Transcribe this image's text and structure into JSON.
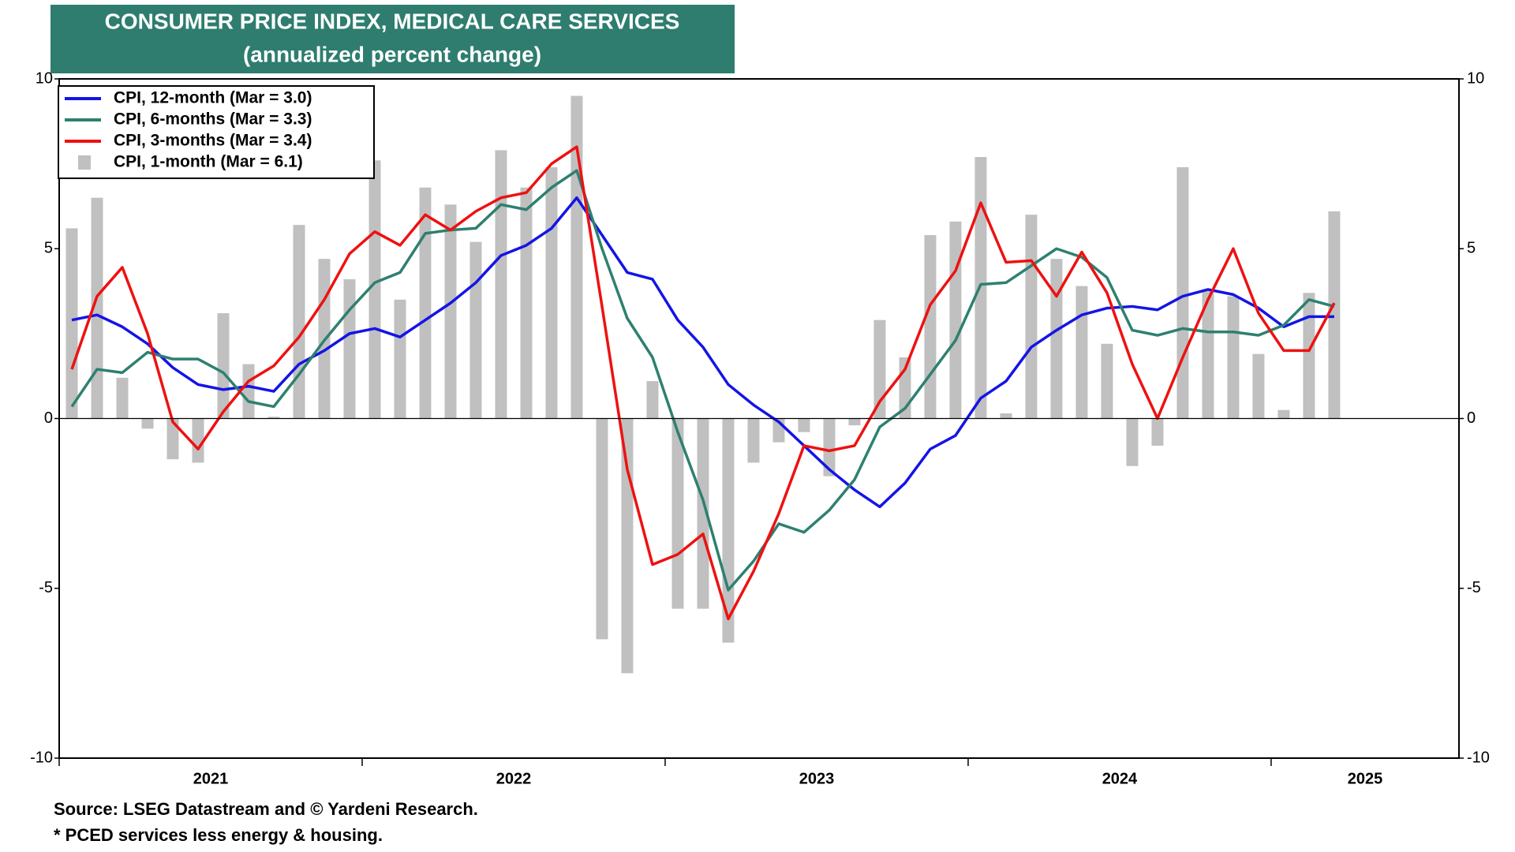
{
  "chart_data": {
    "type": "combo",
    "title": "CONSUMER PRICE INDEX, MEDICAL CARE SERVICES",
    "subtitle": "(annualized percent change)",
    "notes": [
      "Source: LSEG Datastream and © Yardeni Research.",
      "* PCED services less energy & housing."
    ],
    "x": [
      2021.0417,
      2021.125,
      2021.2083,
      2021.2917,
      2021.375,
      2021.4583,
      2021.5417,
      2021.625,
      2021.7083,
      2021.7917,
      2021.875,
      2021.9583,
      2022.0417,
      2022.125,
      2022.2083,
      2022.2917,
      2022.375,
      2022.4583,
      2022.5417,
      2022.625,
      2022.7083,
      2022.7917,
      2022.875,
      2022.9583,
      2023.0417,
      2023.125,
      2023.2083,
      2023.2917,
      2023.375,
      2023.4583,
      2023.5417,
      2023.625,
      2023.7083,
      2023.7917,
      2023.875,
      2023.9583,
      2024.0417,
      2024.125,
      2024.2083,
      2024.2917,
      2024.375,
      2024.4583,
      2024.5417,
      2024.625,
      2024.7083,
      2024.7917,
      2024.875,
      2024.9583,
      2025.0417,
      2025.125,
      2025.2083
    ],
    "xlim": [
      2021,
      2025.62
    ],
    "xticks": [
      2021,
      2022,
      2023,
      2024,
      2025
    ],
    "ylim": [
      -10,
      10
    ],
    "yticks": [
      -10,
      -5,
      0,
      5,
      10
    ],
    "series": [
      {
        "name": "CPI, 1-month (Mar = 6.1)",
        "type": "bar",
        "color": "#c0c0c0",
        "values": [
          5.6,
          6.5,
          1.2,
          -0.3,
          -1.2,
          -1.3,
          3.1,
          1.6,
          0.05,
          5.7,
          4.7,
          4.1,
          7.6,
          3.5,
          6.8,
          6.3,
          5.2,
          7.9,
          6.8,
          7.4,
          9.5,
          -6.5,
          -7.5,
          1.1,
          -5.6,
          -5.6,
          -6.6,
          -1.3,
          -0.7,
          -0.4,
          -1.7,
          -0.2,
          2.9,
          1.8,
          5.4,
          5.8,
          7.7,
          0.15,
          6.0,
          4.7,
          3.9,
          2.2,
          -1.4,
          -0.8,
          7.4,
          3.8,
          3.6,
          1.9,
          0.25,
          3.7,
          6.1
        ]
      },
      {
        "name": "CPI, 12-month (Mar = 3.0)",
        "type": "line",
        "color": "#1414e6",
        "values": [
          2.9,
          3.05,
          2.7,
          2.2,
          1.5,
          1.0,
          0.85,
          0.95,
          0.8,
          1.6,
          2.0,
          2.5,
          2.65,
          2.4,
          2.9,
          3.4,
          4.0,
          4.8,
          5.1,
          5.6,
          6.5,
          5.4,
          4.3,
          4.1,
          2.9,
          2.1,
          1.0,
          0.4,
          -0.1,
          -0.8,
          -1.5,
          -2.1,
          -2.6,
          -1.9,
          -0.9,
          -0.5,
          0.6,
          1.1,
          2.1,
          2.6,
          3.05,
          3.25,
          3.3,
          3.2,
          3.6,
          3.8,
          3.65,
          3.25,
          2.7,
          3.0,
          3.0
        ]
      },
      {
        "name": "CPI, 6-months (Mar = 3.3)",
        "type": "line",
        "color": "#2e8070",
        "values": [
          0.35,
          1.45,
          1.35,
          1.95,
          1.75,
          1.75,
          1.35,
          0.5,
          0.35,
          1.3,
          2.3,
          3.2,
          4.0,
          4.3,
          5.45,
          5.55,
          5.6,
          6.3,
          6.15,
          6.8,
          7.3,
          5.0,
          2.95,
          1.8,
          -0.4,
          -2.4,
          -5.05,
          -4.2,
          -3.1,
          -3.35,
          -2.7,
          -1.8,
          -0.25,
          0.3,
          1.3,
          2.3,
          3.95,
          4.0,
          4.5,
          5.0,
          4.75,
          4.15,
          2.6,
          2.45,
          2.65,
          2.55,
          2.55,
          2.45,
          2.75,
          3.5,
          3.3
        ]
      },
      {
        "name": "CPI, 3-months (Mar = 3.4)",
        "type": "line",
        "color": "#ee1111",
        "values": [
          1.45,
          3.6,
          4.45,
          2.5,
          -0.1,
          -0.9,
          0.2,
          1.1,
          1.55,
          2.4,
          3.5,
          4.85,
          5.5,
          5.1,
          6.0,
          5.55,
          6.1,
          6.5,
          6.65,
          7.5,
          8.0,
          3.3,
          -1.5,
          -4.3,
          -4.0,
          -3.4,
          -5.9,
          -4.5,
          -2.8,
          -0.8,
          -0.95,
          -0.8,
          0.5,
          1.45,
          3.35,
          4.35,
          6.35,
          4.6,
          4.65,
          3.6,
          4.9,
          3.7,
          1.6,
          0.0,
          1.8,
          3.5,
          5.0,
          3.1,
          2.0,
          2.0,
          3.4
        ]
      }
    ],
    "legend_order": [
      1,
      2,
      3,
      0
    ]
  }
}
